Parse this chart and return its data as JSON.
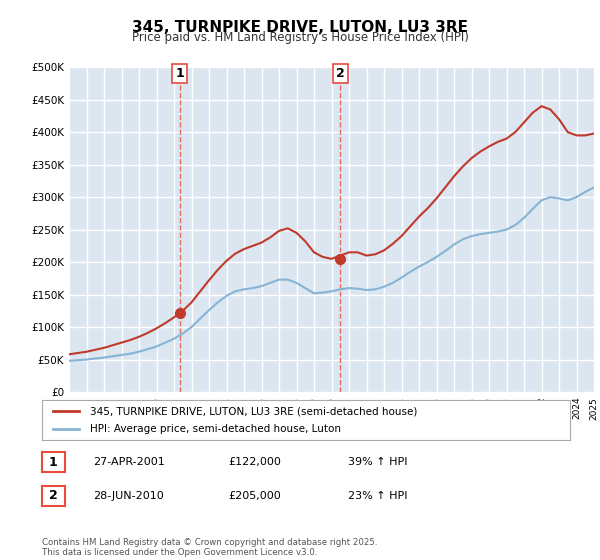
{
  "title": "345, TURNPIKE DRIVE, LUTON, LU3 3RE",
  "subtitle": "Price paid vs. HM Land Registry's House Price Index (HPI)",
  "ylabel": "",
  "xlabel": "",
  "ylim": [
    0,
    500000
  ],
  "yticks": [
    0,
    50000,
    100000,
    150000,
    200000,
    250000,
    300000,
    350000,
    400000,
    450000,
    500000
  ],
  "ytick_labels": [
    "£0",
    "£50K",
    "£100K",
    "£150K",
    "£200K",
    "£250K",
    "£300K",
    "£350K",
    "£400K",
    "£450K",
    "£500K"
  ],
  "background_color": "#dce6f1",
  "plot_bg_color": "#dce6f1",
  "grid_color": "#ffffff",
  "red_line_color": "#c0392b",
  "blue_line_color": "#85b4d4",
  "marker_color": "#c0392b",
  "vline_color": "#e74c3c",
  "purchase1_year": 2001.32,
  "purchase1_price": 122000,
  "purchase1_label": "1",
  "purchase1_date": "27-APR-2001",
  "purchase1_hpi_pct": "39%",
  "purchase2_year": 2010.49,
  "purchase2_price": 205000,
  "purchase2_label": "2",
  "purchase2_date": "28-JUN-2010",
  "purchase2_hpi_pct": "23%",
  "legend_line1": "345, TURNPIKE DRIVE, LUTON, LU3 3RE (semi-detached house)",
  "legend_line2": "HPI: Average price, semi-detached house, Luton",
  "footnote": "Contains HM Land Registry data © Crown copyright and database right 2025.\nThis data is licensed under the Open Government Licence v3.0.",
  "hpi_years": [
    1995,
    1995.5,
    1996,
    1996.5,
    1997,
    1997.5,
    1998,
    1998.5,
    1999,
    1999.5,
    2000,
    2000.5,
    2001,
    2001.5,
    2002,
    2002.5,
    2003,
    2003.5,
    2004,
    2004.5,
    2005,
    2005.5,
    2006,
    2006.5,
    2007,
    2007.5,
    2008,
    2008.5,
    2009,
    2009.5,
    2010,
    2010.5,
    2011,
    2011.5,
    2012,
    2012.5,
    2013,
    2013.5,
    2014,
    2014.5,
    2015,
    2015.5,
    2016,
    2016.5,
    2017,
    2017.5,
    2018,
    2018.5,
    2019,
    2019.5,
    2020,
    2020.5,
    2021,
    2021.5,
    2022,
    2022.5,
    2023,
    2023.5,
    2024,
    2024.5,
    2025
  ],
  "hpi_values": [
    48000,
    49000,
    50000,
    51500,
    53000,
    55000,
    57000,
    59000,
    62000,
    66000,
    70000,
    76000,
    82000,
    90000,
    100000,
    113000,
    126000,
    138000,
    148000,
    155000,
    158000,
    160000,
    163000,
    168000,
    173000,
    173000,
    168000,
    160000,
    152000,
    153000,
    155000,
    158000,
    160000,
    159000,
    157000,
    158000,
    162000,
    168000,
    176000,
    185000,
    193000,
    200000,
    208000,
    217000,
    227000,
    235000,
    240000,
    243000,
    245000,
    247000,
    250000,
    257000,
    268000,
    282000,
    295000,
    300000,
    298000,
    295000,
    300000,
    308000,
    315000
  ],
  "red_years": [
    1995,
    1995.5,
    1996,
    1996.5,
    1997,
    1997.5,
    1998,
    1998.5,
    1999,
    1999.5,
    2000,
    2000.5,
    2001,
    2001.5,
    2002,
    2002.5,
    2003,
    2003.5,
    2004,
    2004.5,
    2005,
    2005.5,
    2006,
    2006.5,
    2007,
    2007.5,
    2008,
    2008.5,
    2009,
    2009.5,
    2010,
    2010.5,
    2011,
    2011.5,
    2012,
    2012.5,
    2013,
    2013.5,
    2014,
    2014.5,
    2015,
    2015.5,
    2016,
    2016.5,
    2017,
    2017.5,
    2018,
    2018.5,
    2019,
    2019.5,
    2020,
    2020.5,
    2021,
    2021.5,
    2022,
    2022.5,
    2023,
    2023.5,
    2024,
    2024.5,
    2025
  ],
  "red_values": [
    58000,
    60000,
    62000,
    65000,
    68000,
    72000,
    76000,
    80000,
    85000,
    91000,
    98000,
    106000,
    115000,
    125000,
    138000,
    155000,
    172000,
    188000,
    202000,
    213000,
    220000,
    225000,
    230000,
    238000,
    248000,
    252000,
    245000,
    232000,
    215000,
    208000,
    205000,
    210000,
    215000,
    215000,
    210000,
    212000,
    218000,
    228000,
    240000,
    255000,
    270000,
    283000,
    298000,
    315000,
    332000,
    347000,
    360000,
    370000,
    378000,
    385000,
    390000,
    400000,
    415000,
    430000,
    440000,
    435000,
    420000,
    400000,
    395000,
    395000,
    398000
  ],
  "xmin": 1995,
  "xmax": 2025
}
